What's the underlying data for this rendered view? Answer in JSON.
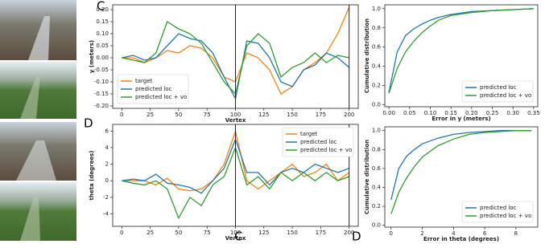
{
  "panel_labels": [
    "C",
    "D",
    "C",
    "D"
  ],
  "chart_data": [
    {
      "type": "line",
      "xlabel": "Vertex",
      "ylabel": "y (meters)",
      "legend": "lower left",
      "grid": false,
      "x": [
        0,
        10,
        20,
        30,
        40,
        50,
        60,
        70,
        80,
        90,
        100,
        110,
        120,
        130,
        140,
        150,
        160,
        170,
        180,
        190,
        200
      ],
      "xlim": [
        -8,
        208
      ],
      "xticks": [
        0,
        25,
        50,
        75,
        100,
        125,
        150,
        175,
        200
      ],
      "ylim": [
        -0.21,
        0.22
      ],
      "yticks": [
        {
          "value": -0.2,
          "label": "-0.20"
        },
        {
          "value": -0.15,
          "label": "-0.15"
        },
        {
          "value": -0.1,
          "label": "-0.10"
        },
        {
          "value": -0.05,
          "label": "-0.05"
        },
        {
          "value": 0,
          "label": "0.00"
        },
        {
          "value": 0.05,
          "label": "0.05"
        },
        {
          "value": 0.1,
          "label": "0.10"
        },
        {
          "value": 0.15,
          "label": "0.15"
        },
        {
          "value": 0.2,
          "label": "0.20"
        }
      ],
      "vlines": [
        100,
        200
      ],
      "series": [
        {
          "name": "target",
          "color": "#ff7f0e",
          "values": [
            0,
            0,
            -0.02,
            0,
            0.03,
            0.02,
            0.05,
            0.04,
            0,
            -0.08,
            -0.1,
            0.02,
            0,
            -0.05,
            -0.15,
            -0.12,
            -0.05,
            -0.02,
            0.02,
            0.1,
            0.21
          ]
        },
        {
          "name": "predicted loc",
          "color": "#1f77b4",
          "values": [
            0,
            0.01,
            -0.01,
            0,
            0.05,
            0.1,
            0.08,
            0.07,
            0.02,
            -0.08,
            -0.17,
            0.07,
            0.06,
            0,
            -0.1,
            -0.12,
            -0.05,
            -0.03,
            0.02,
            0,
            -0.04
          ]
        },
        {
          "name": "predicted loc + vo",
          "color": "#2ca02c",
          "values": [
            0,
            -0.01,
            -0.02,
            0.02,
            0.15,
            0.12,
            0.1,
            0.06,
            -0.02,
            -0.1,
            -0.15,
            0.05,
            0.1,
            0.06,
            -0.08,
            -0.04,
            -0.02,
            0.02,
            -0.02,
            0.01,
            0
          ]
        }
      ]
    },
    {
      "type": "line",
      "xlabel": "Vertex",
      "ylabel": "theta (degrees)",
      "legend": "upper right",
      "grid": false,
      "x": [
        0,
        10,
        20,
        30,
        40,
        50,
        60,
        70,
        80,
        90,
        100,
        110,
        120,
        130,
        140,
        150,
        160,
        170,
        180,
        190,
        200
      ],
      "xlim": [
        -8,
        208
      ],
      "xticks": [
        0,
        25,
        50,
        75,
        100,
        125,
        150,
        175,
        200
      ],
      "ylim": [
        -5.5,
        6.8
      ],
      "yticks": [
        -4,
        -2,
        0,
        2,
        4,
        6
      ],
      "vlines": [
        100,
        200
      ],
      "series": [
        {
          "name": "target",
          "color": "#ff7f0e",
          "values": [
            0,
            0,
            0,
            -0.5,
            0.3,
            -1,
            -1.2,
            -1,
            0,
            2,
            6,
            0,
            -1,
            0,
            1,
            2,
            0.5,
            1,
            2,
            0,
            1
          ]
        },
        {
          "name": "predicted loc",
          "color": "#1f77b4",
          "values": [
            0,
            0.2,
            0,
            0.8,
            -0.3,
            -0.5,
            -0.8,
            -1.5,
            0,
            1.5,
            5,
            1,
            1,
            -0.5,
            1,
            1.5,
            1,
            2,
            1.5,
            1,
            1.5
          ]
        },
        {
          "name": "predicted loc + vo",
          "color": "#2ca02c",
          "values": [
            0,
            -0.3,
            -0.5,
            0,
            -1,
            -4.5,
            -2,
            -3,
            -0.5,
            0.5,
            4,
            -0.5,
            0.5,
            -1,
            1,
            0,
            1,
            0,
            1,
            0,
            0.5
          ]
        }
      ]
    },
    {
      "type": "line",
      "xlabel": "Error in y (meters)",
      "ylabel": "Cumulative distribution",
      "legend": "lower right",
      "grid": false,
      "x": [
        0,
        0.02,
        0.04,
        0.06,
        0.08,
        0.1,
        0.12,
        0.15,
        0.2,
        0.25,
        0.3,
        0.35
      ],
      "xlim": [
        -0.01,
        0.36
      ],
      "xticks": [
        {
          "value": 0,
          "label": "0.00"
        },
        {
          "value": 0.05,
          "label": "0.05"
        },
        {
          "value": 0.1,
          "label": "0.10"
        },
        {
          "value": 0.15,
          "label": "0.15"
        },
        {
          "value": 0.2,
          "label": "0.20"
        },
        {
          "value": 0.25,
          "label": "0.25"
        },
        {
          "value": 0.3,
          "label": "0.30"
        },
        {
          "value": 0.35,
          "label": "0.35"
        }
      ],
      "ylim": [
        -0.02,
        1.04
      ],
      "yticks": [
        {
          "value": 0,
          "label": "0.0"
        },
        {
          "value": 0.2,
          "label": "0.2"
        },
        {
          "value": 0.4,
          "label": "0.4"
        },
        {
          "value": 0.6,
          "label": "0.6"
        },
        {
          "value": 0.8,
          "label": "0.8"
        },
        {
          "value": 1,
          "label": "1.0"
        }
      ],
      "series": [
        {
          "name": "predicted loc",
          "color": "#1f77b4",
          "values": [
            0.13,
            0.55,
            0.72,
            0.79,
            0.84,
            0.88,
            0.91,
            0.94,
            0.97,
            0.98,
            0.99,
            1
          ]
        },
        {
          "name": "predicted loc + vo",
          "color": "#2ca02c",
          "values": [
            0.12,
            0.38,
            0.55,
            0.66,
            0.75,
            0.82,
            0.88,
            0.93,
            0.96,
            0.98,
            0.99,
            1
          ]
        }
      ]
    },
    {
      "type": "line",
      "xlabel": "Error in theta (degrees)",
      "ylabel": "Cumulative distribution",
      "legend": "lower right",
      "grid": false,
      "x": [
        0,
        0.5,
        1,
        1.5,
        2,
        3,
        4,
        5,
        6,
        7,
        8,
        9
      ],
      "xlim": [
        -0.4,
        9.4
      ],
      "xticks": [
        0,
        2,
        4,
        6,
        8
      ],
      "ylim": [
        -0.02,
        1.04
      ],
      "yticks": [
        {
          "value": 0,
          "label": "0.0"
        },
        {
          "value": 0.2,
          "label": "0.2"
        },
        {
          "value": 0.4,
          "label": "0.4"
        },
        {
          "value": 0.6,
          "label": "0.6"
        },
        {
          "value": 0.8,
          "label": "0.8"
        },
        {
          "value": 1,
          "label": "1.0"
        }
      ],
      "series": [
        {
          "name": "predicted loc",
          "color": "#1f77b4",
          "values": [
            0.27,
            0.6,
            0.73,
            0.8,
            0.86,
            0.92,
            0.96,
            0.98,
            0.99,
            1,
            1,
            1
          ]
        },
        {
          "name": "predicted loc + vo",
          "color": "#2ca02c",
          "values": [
            0.12,
            0.35,
            0.5,
            0.62,
            0.72,
            0.84,
            0.91,
            0.96,
            0.98,
            0.99,
            1,
            1
          ]
        }
      ]
    }
  ]
}
